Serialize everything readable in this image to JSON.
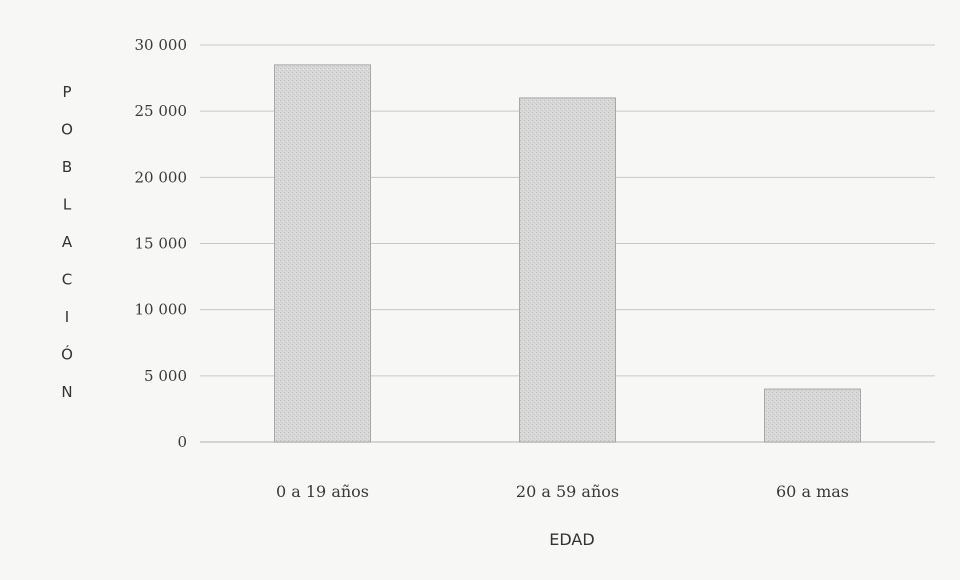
{
  "chart_data": {
    "type": "bar",
    "title": "",
    "categories": [
      "0 a 19 años",
      "20 a 59 años",
      "60 a mas"
    ],
    "values": [
      28500,
      26000,
      4000
    ],
    "xlabel": "EDAD",
    "ylabel": "POBLACIÓN",
    "ylim": [
      0,
      30000
    ],
    "yticks": [
      0,
      5000,
      10000,
      15000,
      20000,
      25000,
      30000
    ],
    "ytick_labels": [
      "0",
      "5 000",
      "10 000",
      "15 000",
      "20 000",
      "25 000",
      "30 000"
    ],
    "grid": true,
    "legend": "none",
    "colors": {
      "bar_fill": "#d6d6d6",
      "bar_stroke": "#a8a8a8",
      "grid": "#c8c8c8",
      "background": "#f7f7f5"
    }
  }
}
